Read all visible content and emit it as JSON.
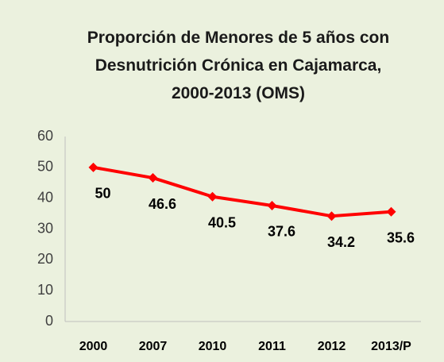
{
  "chart_data": {
    "type": "line",
    "title": "Proporción de Menores de 5 años con Desnutrición Crónica en Cajamarca, 2000-2013 (OMS)",
    "categories": [
      "2000",
      "2007",
      "2010",
      "2011",
      "2012",
      "2013/P"
    ],
    "series": [
      {
        "name": null,
        "color": "#ff0000",
        "values": [
          50,
          46.6,
          40.5,
          37.6,
          34.2,
          35.6
        ]
      }
    ],
    "ylim": [
      0,
      60
    ],
    "yticks": [
      0,
      10,
      20,
      30,
      40,
      50,
      60
    ],
    "grid": false,
    "legend": false
  }
}
